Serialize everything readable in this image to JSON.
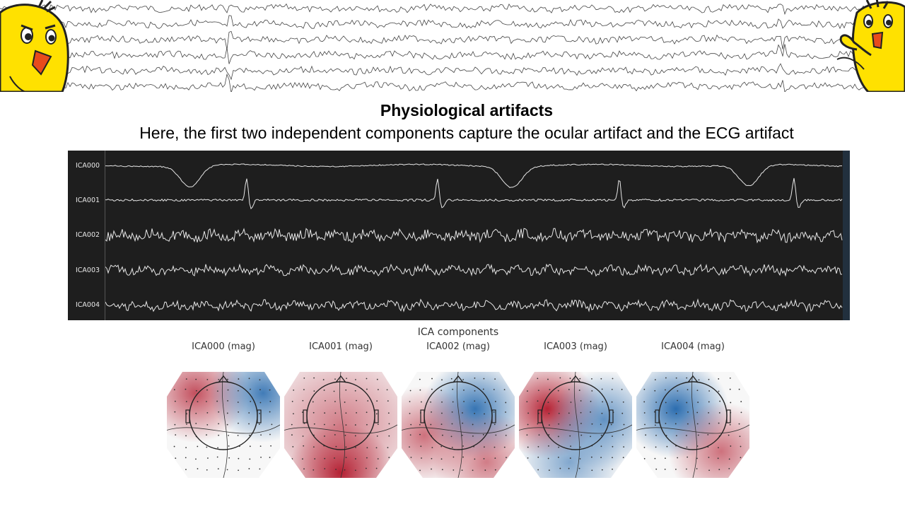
{
  "slide": {
    "title": "Physiological artifacts",
    "subtitle": "Here, the first two independent components capture the ocular artifact and the ECG artifact"
  },
  "ica_traces": {
    "channels": [
      "ICA000",
      "ICA001",
      "ICA002",
      "ICA003",
      "ICA004"
    ],
    "panel_color": "#1e1e1e",
    "trace_color": "#e6e6e6"
  },
  "topomaps": {
    "figure_title": "ICA components",
    "titles": [
      "ICA000 (mag)",
      "ICA001 (mag)",
      "ICA002 (mag)",
      "ICA003 (mag)",
      "ICA004 (mag)"
    ],
    "colors": {
      "positive": "#b2182b",
      "negative": "#2166ac",
      "neutral": "#f7f7f7"
    }
  },
  "icons": [
    "chick-mascot-icon",
    "chick-mascot-pointing-icon"
  ]
}
